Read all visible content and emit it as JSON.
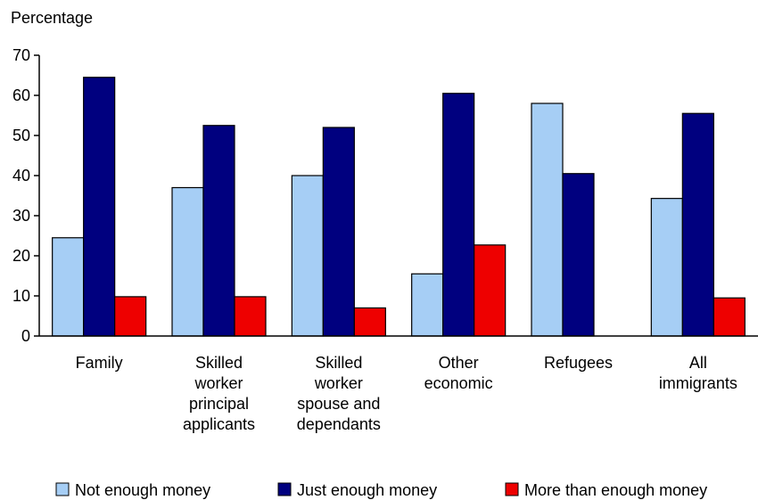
{
  "chart_data": {
    "type": "bar",
    "ylabel": "Percentage",
    "ylim": [
      0,
      70
    ],
    "yticks": [
      0,
      10,
      20,
      30,
      40,
      50,
      60,
      70
    ],
    "categories": [
      [
        "Family"
      ],
      [
        "Skilled",
        "worker",
        "principal",
        "applicants"
      ],
      [
        "Skilled",
        "worker",
        "spouse and",
        "dependants"
      ],
      [
        "Other",
        "economic"
      ],
      [
        "Refugees"
      ],
      [
        "All",
        "immigrants"
      ]
    ],
    "series": [
      {
        "name": "Not enough money",
        "color": "#a6cef5",
        "values": [
          24.5,
          37,
          40,
          15.5,
          58,
          34.3
        ]
      },
      {
        "name": "Just enough money",
        "color": "#00007f",
        "values": [
          64.5,
          52.5,
          52,
          60.5,
          40.5,
          55.5
        ]
      },
      {
        "name": "More than enough money",
        "color": "#ee0000",
        "values": [
          9.8,
          9.8,
          7,
          22.7,
          0,
          9.5
        ]
      }
    ],
    "legend_position": "bottom",
    "grid": false
  }
}
